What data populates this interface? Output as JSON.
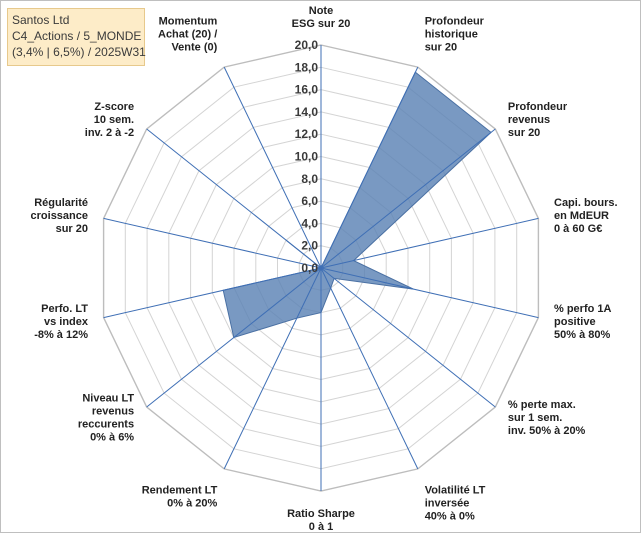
{
  "title_box": {
    "line1": "Santos Ltd",
    "line2": "C4_Actions / 5_MONDE",
    "line3": "(3,4% | 6,5%) / 2025W31"
  },
  "chart_data": {
    "type": "radar",
    "rlim": [
      0,
      20
    ],
    "tick_labels": [
      "0,0",
      "2,0",
      "4,0",
      "6,0",
      "8,0",
      "10,0",
      "12,0",
      "14,0",
      "16,0",
      "18,0",
      "20,0"
    ],
    "axes": [
      [
        "Note",
        "ESG sur 20"
      ],
      [
        "Profondeur",
        "historique",
        "sur 20"
      ],
      [
        "Profondeur",
        "revenus",
        "sur 20"
      ],
      [
        "Capi. bours.",
        "en MdEUR",
        "0 à 60 G€"
      ],
      [
        "% perfo 1A",
        "positive",
        "50% à 80%"
      ],
      [
        "% perte max.",
        "sur 1 sem.",
        "inv. 50% à 20%"
      ],
      [
        "Volatilité LT",
        "inversée",
        "40% à 0%"
      ],
      [
        "Ratio Sharpe",
        "0 à 1"
      ],
      [
        "Rendement LT",
        "0% à 20%"
      ],
      [
        "Niveau LT",
        "revenus",
        "reccurents",
        "0% à 6%"
      ],
      [
        "Perfo. LT",
        "vs index",
        "-8% à 12%"
      ],
      [
        "Régularité",
        "croissance",
        "sur 20"
      ],
      [
        "Z-score",
        "10 sem.",
        "inv. 2 à -2"
      ],
      [
        "Momentum",
        "Achat (20) /",
        "Vente (0)"
      ]
    ],
    "values": [
      0,
      19.5,
      19.5,
      3.0,
      8.5,
      1.5,
      2.0,
      4.0,
      5.0,
      10.0,
      9.0,
      0,
      4.0,
      0
    ],
    "series_color": "#5b82b5",
    "grid": true,
    "legend": "none"
  }
}
